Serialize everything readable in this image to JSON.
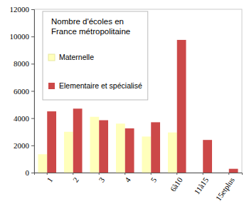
{
  "chart_data": {
    "type": "bar",
    "title": "Nombre d'écoles en France métropolitaine",
    "categories": [
      "1",
      "2",
      "3",
      "4",
      "5",
      "6à10",
      "11à15",
      "15etplus"
    ],
    "series": [
      {
        "name": "Maternelle",
        "color": "#ffffbb",
        "values": [
          1350,
          3000,
          4100,
          3600,
          2650,
          2950,
          0,
          0
        ]
      },
      {
        "name": "Elementaire et spécialisé",
        "color": "#cc4848",
        "values": [
          4500,
          4700,
          3850,
          3250,
          3700,
          9750,
          2400,
          280
        ]
      }
    ],
    "ylim": [
      0,
      12000
    ],
    "yticks": [
      0,
      2000,
      4000,
      6000,
      8000,
      10000,
      12000
    ],
    "grid": false,
    "legend": "top-left"
  }
}
